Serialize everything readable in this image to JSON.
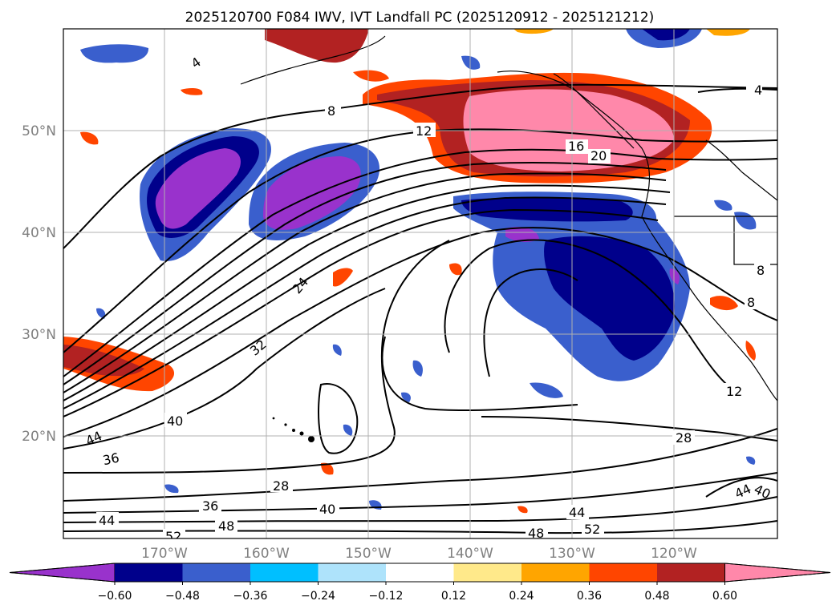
{
  "title": "2025120700 F084 IWV, IVT Landfall PC (2025120912 - 2025121212)",
  "lat_labels": [
    "50°N",
    "40°N",
    "30°N",
    "20°N"
  ],
  "lon_labels": [
    "170°W",
    "160°W",
    "150°W",
    "140°W",
    "130°W",
    "120°W"
  ],
  "colorbar": {
    "ticks": [
      "−0.60",
      "−0.48",
      "−0.36",
      "−0.24",
      "−0.12",
      "0.12",
      "0.24",
      "0.36",
      "0.48",
      "0.60"
    ],
    "colors": [
      "#9932cc",
      "#00008b",
      "#3a5fcd",
      "#00bfff",
      "#aee3fb",
      "#ffffff",
      "#ffe98a",
      "#ffa500",
      "#ff4500",
      "#b22222",
      "#ff88aa"
    ]
  },
  "contour_labels": [
    "4",
    "8",
    "12",
    "16",
    "20",
    "24",
    "32",
    "40",
    "44",
    "36",
    "28",
    "36",
    "40",
    "44",
    "48",
    "52",
    "28",
    "44",
    "52",
    "48",
    "40",
    "44",
    "12",
    "8",
    "8",
    "4"
  ]
}
